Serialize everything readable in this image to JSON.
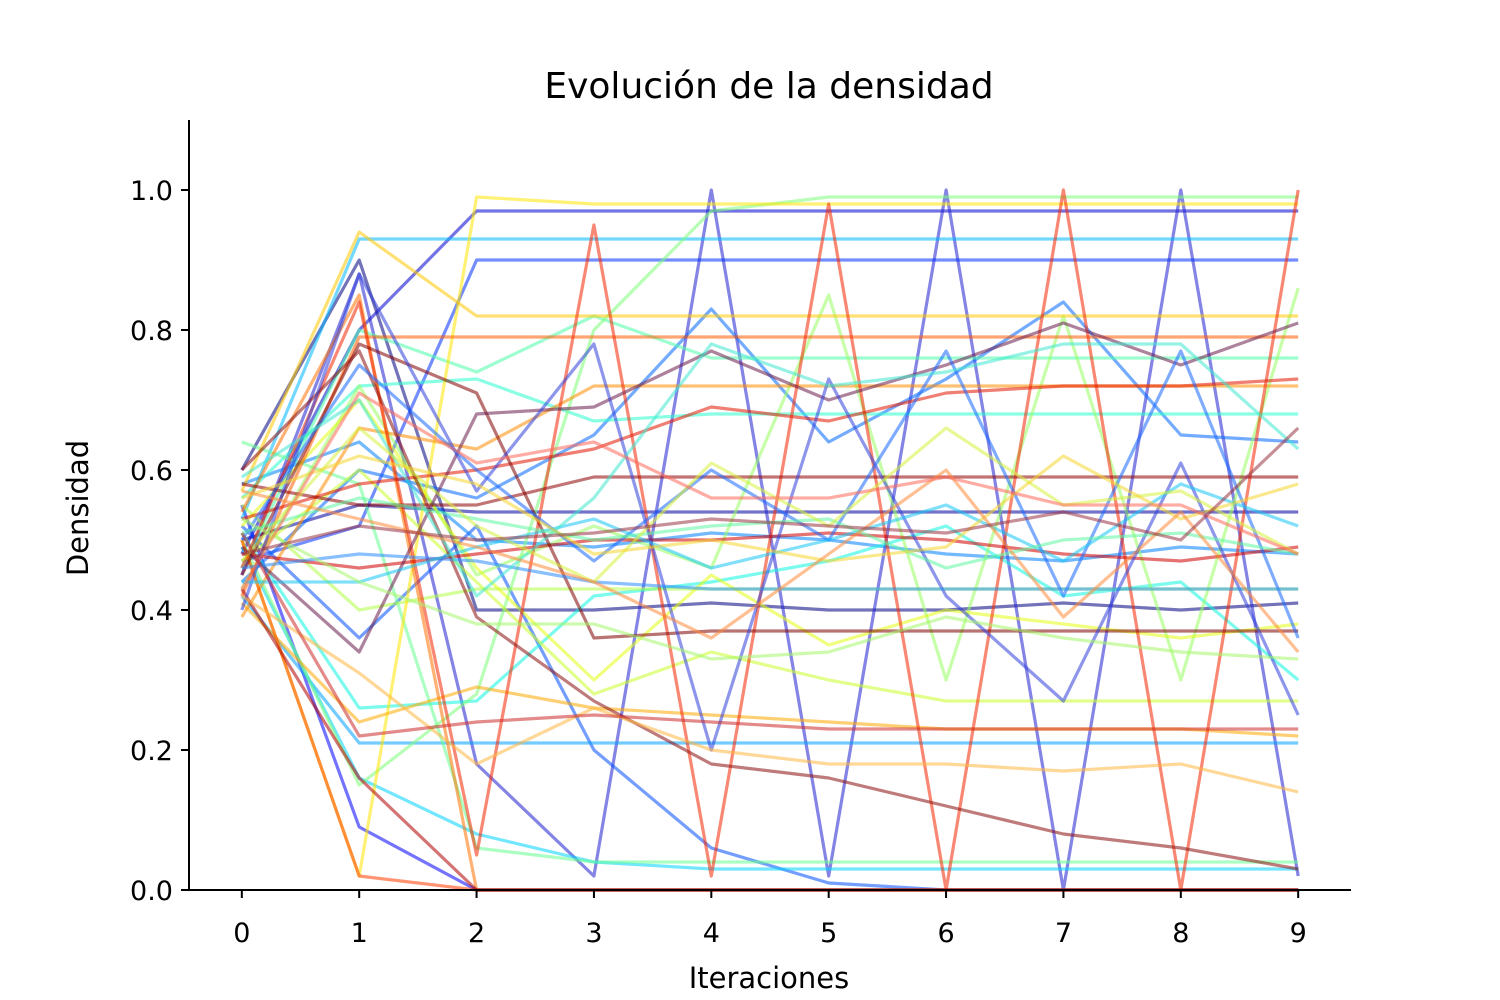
{
  "chart_data": {
    "type": "line",
    "title": "Evolución de la densidad",
    "xlabel": "Iteraciones",
    "ylabel": "Densidad",
    "x": [
      0,
      1,
      2,
      3,
      4,
      5,
      6,
      7,
      8,
      9
    ],
    "xticks": [
      "0",
      "1",
      "2",
      "3",
      "4",
      "5",
      "6",
      "7",
      "8",
      "9"
    ],
    "yticks": [
      "0.0",
      "0.2",
      "0.4",
      "0.6",
      "0.8",
      "1.0"
    ],
    "xlim": [
      -0.45,
      9.45
    ],
    "ylim": [
      0.0,
      1.1
    ],
    "grid": false,
    "legend": "none",
    "colormap": "jet",
    "series": [
      {
        "color": "#00007f",
        "values": [
          0.6,
          0.9,
          0.4,
          0.4,
          0.41,
          0.4,
          0.4,
          0.41,
          0.4,
          0.41
        ]
      },
      {
        "color": "#00009f",
        "values": [
          0.5,
          0.55,
          0.54,
          0.54,
          0.54,
          0.54,
          0.54,
          0.54,
          0.54,
          0.54
        ]
      },
      {
        "color": "#0000cc",
        "values": [
          0.48,
          0.8,
          0.97,
          0.97,
          0.97,
          0.97,
          0.97,
          0.97,
          0.97,
          0.97
        ]
      },
      {
        "color": "#0000ff",
        "values": [
          0.55,
          0.09,
          0.0,
          0.0,
          0.0,
          0.0,
          0.0,
          0.0,
          0.0,
          0.0
        ]
      },
      {
        "color": "#1f1fd0",
        "values": [
          0.45,
          0.88,
          0.18,
          0.02,
          1.0,
          0.02,
          1.0,
          0.0,
          1.0,
          0.02
        ]
      },
      {
        "color": "#0030ff",
        "values": [
          0.47,
          0.52,
          0.9,
          0.9,
          0.9,
          0.9,
          0.9,
          0.9,
          0.9,
          0.9
        ]
      },
      {
        "color": "#004cff",
        "values": [
          0.52,
          0.36,
          0.52,
          0.2,
          0.06,
          0.01,
          0.0,
          0.0,
          0.0,
          0.0
        ]
      },
      {
        "color": "#0066ff",
        "values": [
          0.44,
          0.6,
          0.56,
          0.65,
          0.83,
          0.64,
          0.73,
          0.84,
          0.65,
          0.64
        ]
      },
      {
        "color": "#0080ff",
        "values": [
          0.58,
          0.64,
          0.5,
          0.49,
          0.51,
          0.5,
          0.48,
          0.47,
          0.49,
          0.48
        ]
      },
      {
        "color": "#00a0ff",
        "values": [
          0.42,
          0.21,
          0.21,
          0.21,
          0.21,
          0.21,
          0.21,
          0.21,
          0.21,
          0.21
        ]
      },
      {
        "color": "#00b8ff",
        "values": [
          0.53,
          0.93,
          0.93,
          0.93,
          0.93,
          0.93,
          0.93,
          0.93,
          0.93,
          0.93
        ]
      },
      {
        "color": "#00d4ff",
        "values": [
          0.49,
          0.16,
          0.08,
          0.04,
          0.03,
          0.03,
          0.03,
          0.03,
          0.03,
          0.03
        ]
      },
      {
        "color": "#0ff5e0",
        "values": [
          0.51,
          0.26,
          0.27,
          0.42,
          0.44,
          0.47,
          0.52,
          0.42,
          0.44,
          0.3
        ]
      },
      {
        "color": "#29ffce",
        "values": [
          0.56,
          0.72,
          0.73,
          0.67,
          0.68,
          0.68,
          0.68,
          0.68,
          0.68,
          0.68
        ]
      },
      {
        "color": "#4dffaa",
        "values": [
          0.46,
          0.8,
          0.74,
          0.82,
          0.76,
          0.76,
          0.76,
          0.76,
          0.76,
          0.76
        ]
      },
      {
        "color": "#66ff90",
        "values": [
          0.64,
          0.58,
          0.06,
          0.04,
          0.04,
          0.04,
          0.04,
          0.04,
          0.04,
          0.04
        ]
      },
      {
        "color": "#7dff7a",
        "values": [
          0.5,
          0.15,
          0.28,
          0.8,
          0.97,
          0.99,
          0.99,
          0.99,
          0.99,
          0.99
        ]
      },
      {
        "color": "#97ff60",
        "values": [
          0.43,
          0.72,
          0.45,
          0.52,
          0.46,
          0.85,
          0.3,
          0.82,
          0.3,
          0.86
        ]
      },
      {
        "color": "#b1ff46",
        "values": [
          0.55,
          0.4,
          0.43,
          0.43,
          0.43,
          0.43,
          0.43,
          0.43,
          0.43,
          0.43
        ]
      },
      {
        "color": "#caff2c",
        "values": [
          0.47,
          0.6,
          0.44,
          0.28,
          0.34,
          0.3,
          0.27,
          0.27,
          0.27,
          0.27
        ]
      },
      {
        "color": "#e4ff13",
        "values": [
          0.52,
          0.7,
          0.46,
          0.3,
          0.45,
          0.35,
          0.4,
          0.38,
          0.36,
          0.38
        ]
      },
      {
        "color": "#ffe600",
        "values": [
          0.5,
          0.02,
          0.99,
          0.98,
          0.98,
          0.98,
          0.98,
          0.98,
          0.98,
          0.98
        ]
      },
      {
        "color": "#ffc800",
        "values": [
          0.57,
          0.94,
          0.82,
          0.82,
          0.82,
          0.82,
          0.82,
          0.82,
          0.82,
          0.82
        ]
      },
      {
        "color": "#ffaa00",
        "values": [
          0.41,
          0.24,
          0.29,
          0.26,
          0.25,
          0.24,
          0.23,
          0.23,
          0.23,
          0.22
        ]
      },
      {
        "color": "#ff8c00",
        "values": [
          0.39,
          0.66,
          0.63,
          0.72,
          0.72,
          0.72,
          0.72,
          0.72,
          0.72,
          0.72
        ]
      },
      {
        "color": "#ff7300",
        "values": [
          0.54,
          0.85,
          0.0,
          0.0,
          0.0,
          0.0,
          0.0,
          0.0,
          0.0,
          0.0
        ]
      },
      {
        "color": "#ff5a00",
        "values": [
          0.42,
          0.79,
          0.79,
          0.79,
          0.79,
          0.79,
          0.79,
          0.79,
          0.79,
          0.79
        ]
      },
      {
        "color": "#ff3c00",
        "values": [
          0.5,
          0.02,
          0.0,
          0.0,
          0.0,
          0.0,
          0.0,
          0.0,
          0.0,
          0.0
        ]
      },
      {
        "color": "#f22700",
        "values": [
          0.46,
          0.84,
          0.05,
          0.95,
          0.02,
          0.98,
          0.0,
          1.0,
          0.0,
          1.0
        ]
      },
      {
        "color": "#e21500",
        "values": [
          0.53,
          0.58,
          0.6,
          0.63,
          0.69,
          0.67,
          0.71,
          0.72,
          0.72,
          0.73
        ]
      },
      {
        "color": "#d00000",
        "values": [
          0.48,
          0.46,
          0.48,
          0.5,
          0.5,
          0.51,
          0.5,
          0.48,
          0.47,
          0.49
        ]
      },
      {
        "color": "#b00000",
        "values": [
          0.43,
          0.16,
          0.0,
          0.0,
          0.0,
          0.0,
          0.0,
          0.0,
          0.0,
          0.0
        ]
      },
      {
        "color": "#900000",
        "values": [
          0.58,
          0.55,
          0.55,
          0.59,
          0.59,
          0.59,
          0.59,
          0.59,
          0.59,
          0.59
        ]
      },
      {
        "color": "#7f0000",
        "values": [
          0.45,
          0.78,
          0.71,
          0.36,
          0.37,
          0.37,
          0.37,
          0.37,
          0.37,
          0.37
        ]
      },
      {
        "color": "#8b0f0f",
        "values": [
          0.6,
          0.77,
          0.39,
          0.27,
          0.18,
          0.16,
          0.12,
          0.08,
          0.06,
          0.03
        ]
      },
      {
        "color": "#6a1b4d",
        "values": [
          0.49,
          0.34,
          0.68,
          0.69,
          0.77,
          0.7,
          0.75,
          0.81,
          0.75,
          0.81
        ]
      },
      {
        "color": "#2f3fd8",
        "values": [
          0.4,
          0.88,
          0.57,
          0.78,
          0.2,
          0.73,
          0.42,
          0.27,
          0.61,
          0.25
        ]
      },
      {
        "color": "#1767ff",
        "values": [
          0.5,
          0.75,
          0.6,
          0.47,
          0.6,
          0.5,
          0.77,
          0.42,
          0.77,
          0.36
        ]
      },
      {
        "color": "#2a8cff",
        "values": [
          0.46,
          0.48,
          0.47,
          0.44,
          0.43,
          0.43,
          0.43,
          0.43,
          0.43,
          0.43
        ]
      },
      {
        "color": "#18c7f5",
        "values": [
          0.44,
          0.44,
          0.49,
          0.53,
          0.46,
          0.5,
          0.55,
          0.47,
          0.58,
          0.52
        ]
      },
      {
        "color": "#3fe8d0",
        "values": [
          0.59,
          0.7,
          0.42,
          0.56,
          0.78,
          0.72,
          0.74,
          0.78,
          0.78,
          0.63
        ]
      },
      {
        "color": "#5cf5a0",
        "values": [
          0.51,
          0.56,
          0.53,
          0.5,
          0.52,
          0.53,
          0.46,
          0.5,
          0.51,
          0.48
        ]
      },
      {
        "color": "#a5f56b",
        "values": [
          0.53,
          0.44,
          0.38,
          0.38,
          0.33,
          0.34,
          0.39,
          0.36,
          0.34,
          0.33
        ]
      },
      {
        "color": "#d7f03c",
        "values": [
          0.47,
          0.66,
          0.52,
          0.44,
          0.61,
          0.52,
          0.66,
          0.55,
          0.57,
          0.48
        ]
      },
      {
        "color": "#f5d52e",
        "values": [
          0.56,
          0.62,
          0.58,
          0.48,
          0.5,
          0.47,
          0.49,
          0.62,
          0.53,
          0.58
        ]
      },
      {
        "color": "#ffb640",
        "values": [
          0.42,
          0.31,
          0.18,
          0.26,
          0.2,
          0.18,
          0.18,
          0.17,
          0.18,
          0.14
        ]
      },
      {
        "color": "#ff8a3a",
        "values": [
          0.57,
          0.53,
          0.49,
          0.44,
          0.36,
          0.48,
          0.6,
          0.39,
          0.54,
          0.34
        ]
      },
      {
        "color": "#ff6a5a",
        "values": [
          0.43,
          0.71,
          0.61,
          0.64,
          0.56,
          0.56,
          0.59,
          0.55,
          0.55,
          0.48
        ]
      },
      {
        "color": "#cc2a2a",
        "values": [
          0.51,
          0.22,
          0.24,
          0.25,
          0.24,
          0.23,
          0.23,
          0.23,
          0.23,
          0.23
        ]
      },
      {
        "color": "#993344",
        "values": [
          0.48,
          0.52,
          0.5,
          0.51,
          0.53,
          0.52,
          0.51,
          0.54,
          0.5,
          0.66
        ]
      }
    ]
  }
}
